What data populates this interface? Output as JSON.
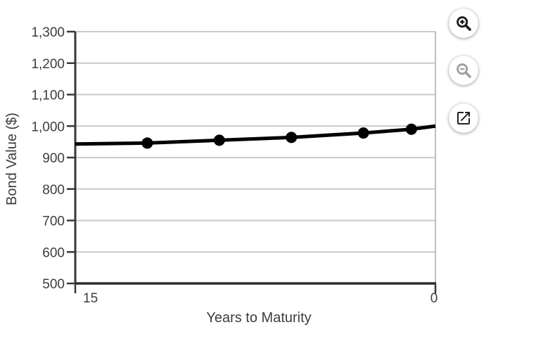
{
  "figure": {
    "controls": [
      {
        "icon": "magnifier-plus-icon",
        "action": "zoom-in",
        "enabled": true,
        "color": "#1b1b1b"
      },
      {
        "icon": "magnifier-minus-icon",
        "action": "zoom-out",
        "enabled": false,
        "color": "#9e9e9e"
      },
      {
        "icon": "open-in-new-icon",
        "action": "open-in-new-window",
        "enabled": true,
        "color": "#222222"
      }
    ]
  },
  "chart_data": {
    "type": "line",
    "title": "",
    "xlabel": "Years to Maturity",
    "ylabel": "Bond Value ($)",
    "x": [
      15,
      12,
      9,
      6,
      3,
      1,
      0
    ],
    "y": [
      943,
      946,
      955,
      964,
      978,
      990,
      1000
    ],
    "marker_x": [
      12,
      9,
      6,
      3,
      1
    ],
    "xlim": [
      15,
      0
    ],
    "x_axis_reversed": true,
    "ylim": [
      500,
      1300
    ],
    "x_ticks": [
      15,
      0
    ],
    "x_tick_labels": [
      "15",
      "0"
    ],
    "y_ticks": [
      500,
      600,
      700,
      800,
      900,
      1000,
      1100,
      1200,
      1300
    ],
    "y_tick_labels": [
      "500",
      "600",
      "700",
      "800",
      "900",
      "1,000",
      "1,100",
      "1,200",
      "1,300"
    ],
    "grid": "horizontal",
    "legend": "none",
    "line_color": "#000000",
    "marker_color": "#000000",
    "marker_radius": 8,
    "line_width": 5,
    "axis_color": "#383838",
    "bottom_axis_color": "#2d2d2d",
    "grid_color": "#c9c9c9",
    "plot_border_color": "#bdbdbd",
    "label_color": "#3d3d3d"
  }
}
